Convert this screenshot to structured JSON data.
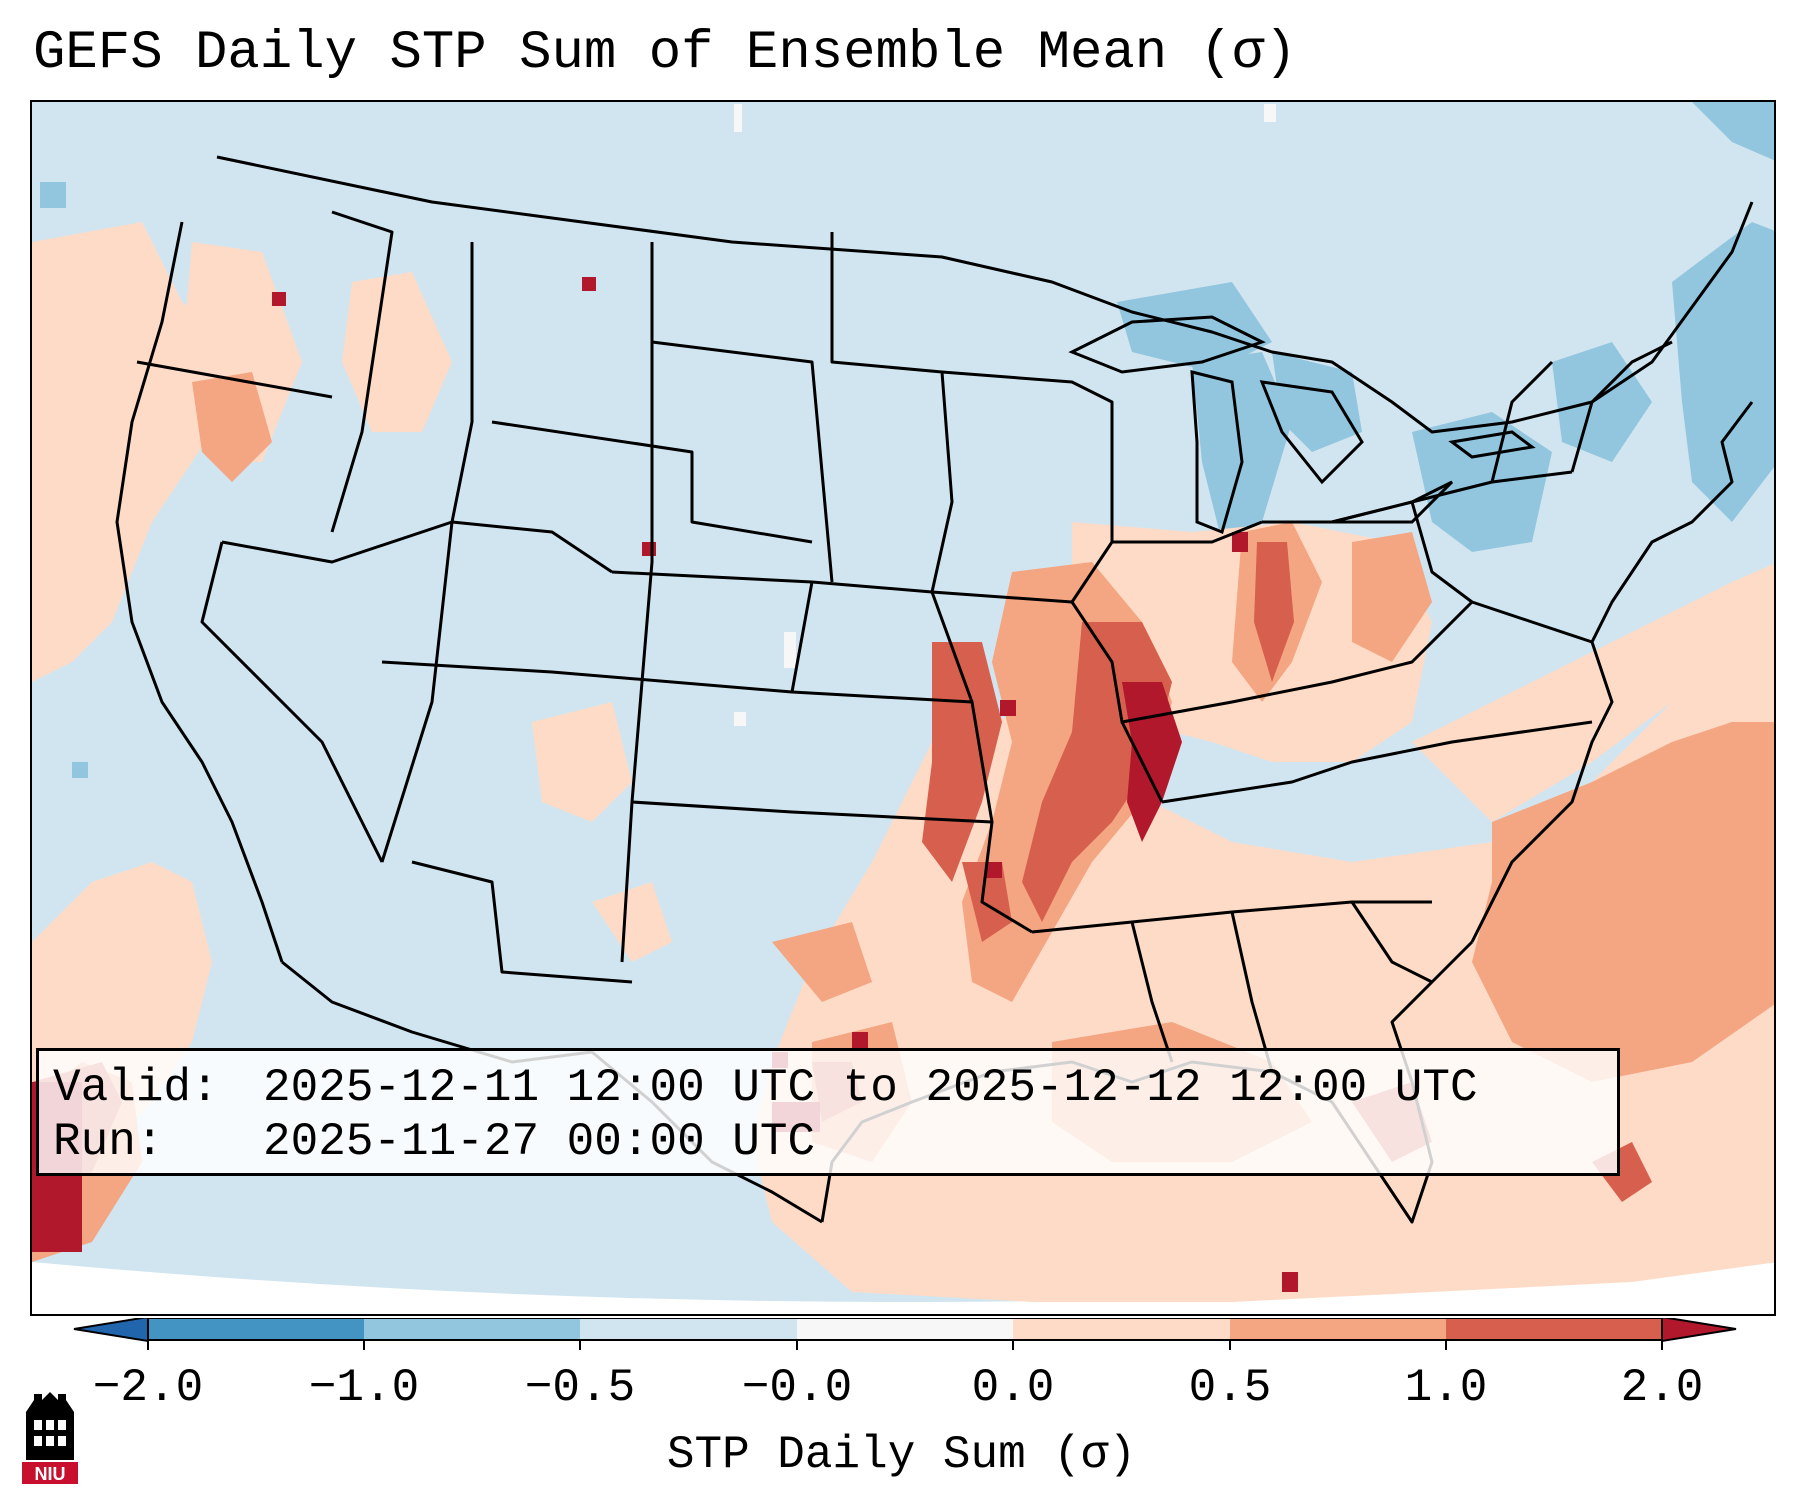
{
  "title": "GEFS Daily STP Sum of Ensemble Mean (σ)",
  "info": {
    "valid_label": "Valid:",
    "valid_value": "2025-12-11 12:00 UTC to 2025-12-12 12:00 UTC",
    "run_label": "Run:",
    "run_value": "2025-11-27 00:00 UTC"
  },
  "colorbar": {
    "label": "STP Daily Sum (σ)",
    "ticks": [
      "−2.0",
      "−1.0",
      "−0.5",
      "−0.0",
      "0.0",
      "0.5",
      "1.0",
      "2.0"
    ],
    "colors": [
      "#4393c3",
      "#92c5de",
      "#d1e5f0",
      "#f7f7f7",
      "#fddbc7",
      "#f4a582",
      "#d6604d",
      "#b2182b"
    ],
    "under_color": "#2166ac",
    "over_color": "#b2182b"
  },
  "logo": {
    "text": "NIU",
    "colors": [
      "#000000",
      "#c8102e"
    ]
  },
  "map": {
    "background_color": "#d1e5f0",
    "region": "Contiguous United States",
    "color_key": {
      "light_red": "#fddbc7",
      "medium_red": "#f4a582",
      "red": "#d6604d",
      "dark_red": "#b2182b",
      "light_blue": "#92c5de"
    }
  }
}
